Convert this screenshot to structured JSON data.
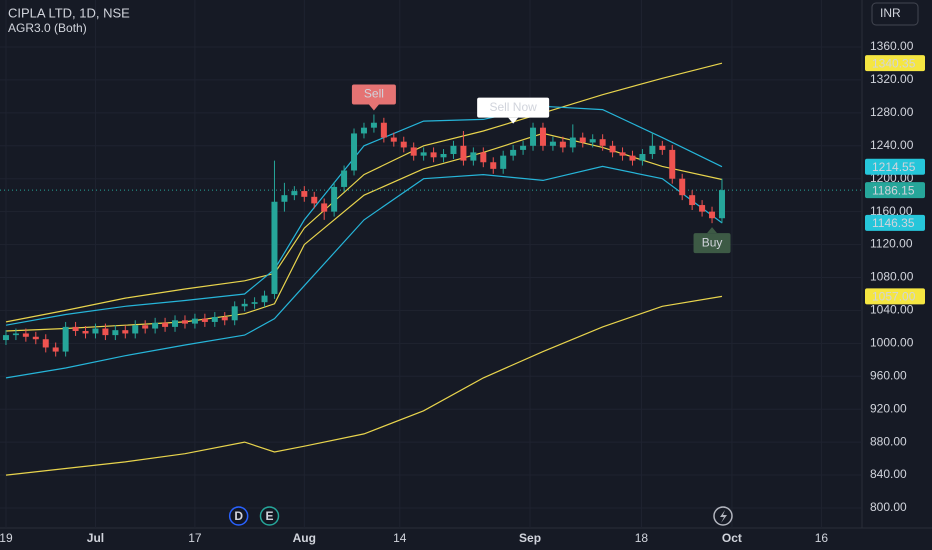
{
  "header": {
    "symbol": "CIPLA LTD, 1D, NSE",
    "indicator": "AGR3.0 (Both)",
    "currency": "INR"
  },
  "chart_data": {
    "type": "candlestick",
    "up_color": "#26a69a",
    "down_color": "#ef5350",
    "open": [
      1004,
      1010,
      1012,
      1008,
      1005,
      995,
      990,
      1020,
      1015,
      1012,
      1018,
      1010,
      1016,
      1012,
      1022,
      1018,
      1025,
      1020,
      1028,
      1024,
      1030,
      1026,
      1032,
      1028,
      1045,
      1048,
      1050,
      1060,
      1172,
      1180,
      1185,
      1178,
      1170,
      1160,
      1190,
      1210,
      1255,
      1262,
      1268,
      1250,
      1245,
      1238,
      1228,
      1232,
      1226,
      1230,
      1240,
      1222,
      1232,
      1220,
      1212,
      1228,
      1235,
      1240,
      1262,
      1240,
      1245,
      1238,
      1250,
      1244,
      1248,
      1240,
      1232,
      1228,
      1222,
      1230,
      1240,
      1235,
      1200,
      1180,
      1168,
      1160,
      1152
    ],
    "high": [
      1016,
      1018,
      1018,
      1014,
      1011,
      1001,
      1026,
      1026,
      1021,
      1024,
      1024,
      1022,
      1022,
      1028,
      1028,
      1031,
      1031,
      1034,
      1034,
      1036,
      1036,
      1038,
      1038,
      1051,
      1054,
      1056,
      1064,
      1222,
      1195,
      1191,
      1191,
      1184,
      1176,
      1196,
      1216,
      1261,
      1268,
      1278,
      1274,
      1256,
      1251,
      1244,
      1238,
      1238,
      1236,
      1246,
      1258,
      1238,
      1238,
      1226,
      1234,
      1241,
      1246,
      1268,
      1268,
      1251,
      1251,
      1266,
      1256,
      1254,
      1254,
      1246,
      1238,
      1234,
      1236,
      1256,
      1246,
      1241,
      1206,
      1186,
      1174,
      1166,
      1200
    ],
    "low": [
      998,
      1004,
      1002,
      999,
      989,
      984,
      984,
      1009,
      1006,
      1006,
      1004,
      1004,
      1006,
      1006,
      1012,
      1012,
      1014,
      1014,
      1018,
      1018,
      1020,
      1020,
      1022,
      1022,
      1039,
      1042,
      1044,
      1054,
      1160,
      1174,
      1172,
      1164,
      1150,
      1154,
      1184,
      1204,
      1249,
      1256,
      1244,
      1239,
      1232,
      1222,
      1222,
      1220,
      1220,
      1224,
      1216,
      1216,
      1214,
      1206,
      1206,
      1222,
      1229,
      1234,
      1234,
      1234,
      1232,
      1232,
      1238,
      1238,
      1234,
      1226,
      1222,
      1216,
      1216,
      1224,
      1229,
      1194,
      1174,
      1162,
      1154,
      1146,
      1146
    ],
    "close": [
      1010,
      1012,
      1008,
      1005,
      995,
      990,
      1020,
      1015,
      1012,
      1018,
      1010,
      1016,
      1012,
      1022,
      1018,
      1025,
      1020,
      1028,
      1024,
      1030,
      1026,
      1032,
      1028,
      1045,
      1048,
      1050,
      1058,
      1172,
      1180,
      1185,
      1178,
      1170,
      1160,
      1190,
      1210,
      1255,
      1262,
      1268,
      1250,
      1245,
      1238,
      1228,
      1232,
      1226,
      1230,
      1240,
      1222,
      1232,
      1220,
      1212,
      1228,
      1235,
      1240,
      1262,
      1240,
      1245,
      1238,
      1250,
      1244,
      1248,
      1240,
      1232,
      1228,
      1222,
      1230,
      1240,
      1235,
      1200,
      1180,
      1168,
      1160,
      1152,
      1186.15
    ],
    "lines": [
      {
        "color": "#e8d44d",
        "x": [
          0,
          6,
          12,
          18,
          24,
          27,
          30,
          36,
          42,
          48,
          54,
          60,
          66,
          72
        ],
        "values": [
          1026,
          1040,
          1055,
          1066,
          1076,
          1085,
          1140,
          1205,
          1240,
          1258,
          1280,
          1302,
          1322,
          1340.35
        ]
      },
      {
        "color": "#e8d44d",
        "x": [
          0,
          6,
          12,
          18,
          24,
          27,
          30,
          36,
          42,
          48,
          54,
          60,
          66,
          72
        ],
        "values": [
          1015,
          1018,
          1022,
          1026,
          1036,
          1048,
          1120,
          1180,
          1212,
          1232,
          1255,
          1238,
          1215,
          1199
        ]
      },
      {
        "color": "#e8d44d",
        "x": [
          0,
          6,
          12,
          18,
          24,
          27,
          30,
          36,
          42,
          48,
          54,
          60,
          66,
          72
        ],
        "values": [
          840,
          848,
          856,
          866,
          880,
          868,
          875,
          890,
          918,
          958,
          990,
          1020,
          1045,
          1057
        ]
      },
      {
        "color": "#26b5d9",
        "x": [
          0,
          6,
          12,
          18,
          24,
          27,
          30,
          36,
          42,
          48,
          54,
          60,
          66,
          72
        ],
        "values": [
          1022,
          1035,
          1045,
          1052,
          1060,
          1090,
          1150,
          1240,
          1270,
          1272,
          1288,
          1284,
          1250,
          1214.55
        ]
      },
      {
        "color": "#26b5d9",
        "x": [
          0,
          6,
          12,
          18,
          24,
          27,
          30,
          36,
          42,
          48,
          54,
          60,
          66,
          72
        ],
        "values": [
          958,
          970,
          985,
          998,
          1010,
          1030,
          1070,
          1150,
          1200,
          1205,
          1198,
          1215,
          1200,
          1146.35
        ]
      }
    ],
    "xlim": [
      -0.6,
      86.08
    ],
    "ylim": [
      785.4,
      1417.1
    ],
    "yticks": [
      {
        "value": 800,
        "label": "800.00"
      },
      {
        "value": 840,
        "label": "840.00"
      },
      {
        "value": 880,
        "label": "880.00"
      },
      {
        "value": 920,
        "label": "920.00"
      },
      {
        "value": 960,
        "label": "960.00"
      },
      {
        "value": 1000,
        "label": "1000.00"
      },
      {
        "value": 1040,
        "label": "1040.00"
      },
      {
        "value": 1080,
        "label": "1080.00"
      },
      {
        "value": 1120,
        "label": "1120.00"
      },
      {
        "value": 1160,
        "label": "1160.00"
      },
      {
        "value": 1200,
        "label": "1200.00"
      },
      {
        "value": 1240,
        "label": "1240.00"
      },
      {
        "value": 1280,
        "label": "1280.00"
      },
      {
        "value": 1320,
        "label": "1320.00"
      },
      {
        "value": 1360,
        "label": "1360.00"
      }
    ],
    "xticks": [
      {
        "value": 0,
        "label": "19"
      },
      {
        "value": 9,
        "label": "Jul"
      },
      {
        "value": 19,
        "label": "17"
      },
      {
        "value": 30,
        "label": "Aug"
      },
      {
        "value": 39.6,
        "label": "14"
      },
      {
        "value": 52.7,
        "label": "Sep"
      },
      {
        "value": 63.9,
        "label": "18"
      },
      {
        "value": 73,
        "label": "Oct"
      },
      {
        "value": 82,
        "label": "16"
      }
    ],
    "price_labels": [
      {
        "value": 1340.35,
        "label": "1340.35",
        "color": "#f5e642"
      },
      {
        "value": 1214.55,
        "label": "1214.55",
        "color": "#26c6da"
      },
      {
        "value": 1186.15,
        "label": "1186.15",
        "color": "#26a69a"
      },
      {
        "value": 1146.35,
        "label": "1146.35",
        "color": "#26c6da"
      },
      {
        "value": 1057,
        "label": "1057.00",
        "color": "#f5e642"
      }
    ],
    "annotations": [
      {
        "text": "Sell",
        "index": 37,
        "price": 1278,
        "color": "#e57373",
        "position": "above"
      },
      {
        "text": "Sell Now",
        "index": 51,
        "price": 1262,
        "color": "#ffffff",
        "position": "above"
      },
      {
        "text": "Buy",
        "index": 71,
        "price": 1146,
        "color": "#3d5a45",
        "position": "below"
      }
    ],
    "events": [
      {
        "text": "D",
        "index": 23.4
      },
      {
        "text": "E",
        "index": 26.5
      }
    ]
  }
}
